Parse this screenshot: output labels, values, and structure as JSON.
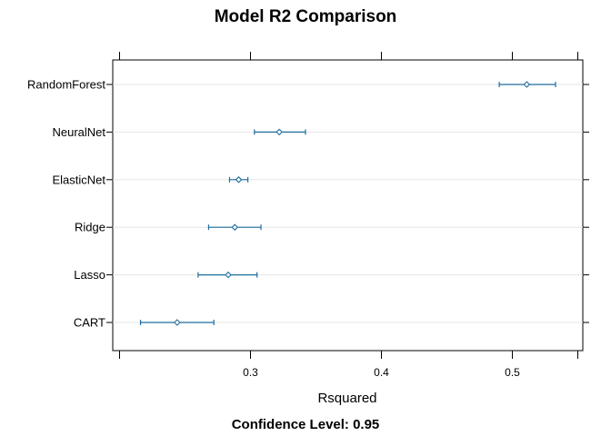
{
  "chart_data": {
    "type": "dotplot-interval",
    "title": "Model R2 Comparison",
    "xlabel": "Rsquared",
    "sub_label": "Confidence Level: 0.95",
    "xlim": [
      0.2,
      0.55
    ],
    "xticks": [
      0.3,
      0.4,
      0.5
    ],
    "grid": true,
    "colors": {
      "mark": "#1f6e9c",
      "grid": "#e6e6e6",
      "frame": "#000000"
    },
    "categories": [
      "RandomForest",
      "NeuralNet",
      "ElasticNet",
      "Ridge",
      "Lasso",
      "CART"
    ],
    "estimates": [
      0.511,
      0.322,
      0.291,
      0.288,
      0.283,
      0.244
    ],
    "lower": [
      0.49,
      0.303,
      0.284,
      0.268,
      0.26,
      0.216
    ],
    "upper": [
      0.533,
      0.342,
      0.298,
      0.308,
      0.305,
      0.272
    ]
  }
}
